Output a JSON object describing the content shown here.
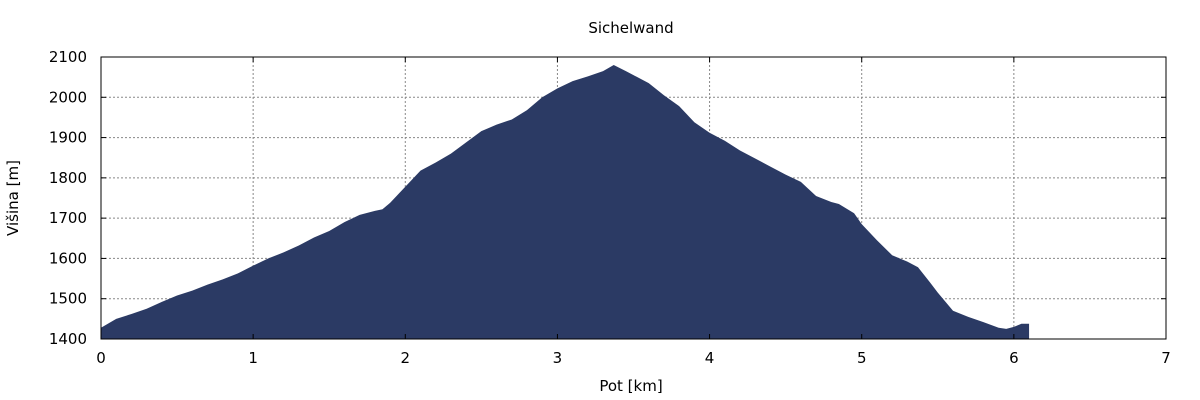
{
  "chart_data": {
    "type": "area",
    "title": "Sichelwand",
    "xlabel": "Pot [km]",
    "ylabel": "Višina [m]",
    "xlim": [
      0,
      7
    ],
    "ylim": [
      1400,
      2100
    ],
    "xticks": [
      0,
      1,
      2,
      3,
      4,
      5,
      6,
      7
    ],
    "yticks": [
      1400,
      1500,
      1600,
      1700,
      1800,
      1900,
      2000,
      2100
    ],
    "grid": true,
    "fill_color": "#2b3a64",
    "series": [
      {
        "x": [
          0,
          0.1,
          0.2,
          0.3,
          0.4,
          0.5,
          0.6,
          0.7,
          0.8,
          0.9,
          1.0,
          1.1,
          1.2,
          1.3,
          1.4,
          1.5,
          1.6,
          1.7,
          1.8,
          1.85,
          1.9,
          2.0,
          2.1,
          2.2,
          2.3,
          2.4,
          2.5,
          2.6,
          2.7,
          2.8,
          2.9,
          3.0,
          3.1,
          3.2,
          3.3,
          3.37,
          3.45,
          3.5,
          3.6,
          3.7,
          3.8,
          3.9,
          4.0,
          4.1,
          4.2,
          4.3,
          4.4,
          4.5,
          4.6,
          4.7,
          4.8,
          4.85,
          4.95,
          5.0,
          5.1,
          5.2,
          5.3,
          5.37,
          5.45,
          5.5,
          5.6,
          5.7,
          5.8,
          5.9,
          5.95,
          6.0,
          6.05,
          6.1
        ],
        "y": [
          1428,
          1450,
          1462,
          1475,
          1492,
          1508,
          1520,
          1535,
          1548,
          1563,
          1582,
          1600,
          1615,
          1632,
          1652,
          1668,
          1690,
          1708,
          1718,
          1722,
          1738,
          1778,
          1818,
          1838,
          1860,
          1888,
          1916,
          1932,
          1945,
          1968,
          2000,
          2022,
          2040,
          2052,
          2065,
          2080,
          2065,
          2055,
          2035,
          2005,
          1978,
          1938,
          1912,
          1892,
          1868,
          1848,
          1828,
          1808,
          1790,
          1755,
          1740,
          1735,
          1712,
          1685,
          1645,
          1608,
          1592,
          1578,
          1540,
          1515,
          1470,
          1455,
          1442,
          1428,
          1425,
          1430,
          1438,
          1438
        ]
      }
    ]
  }
}
